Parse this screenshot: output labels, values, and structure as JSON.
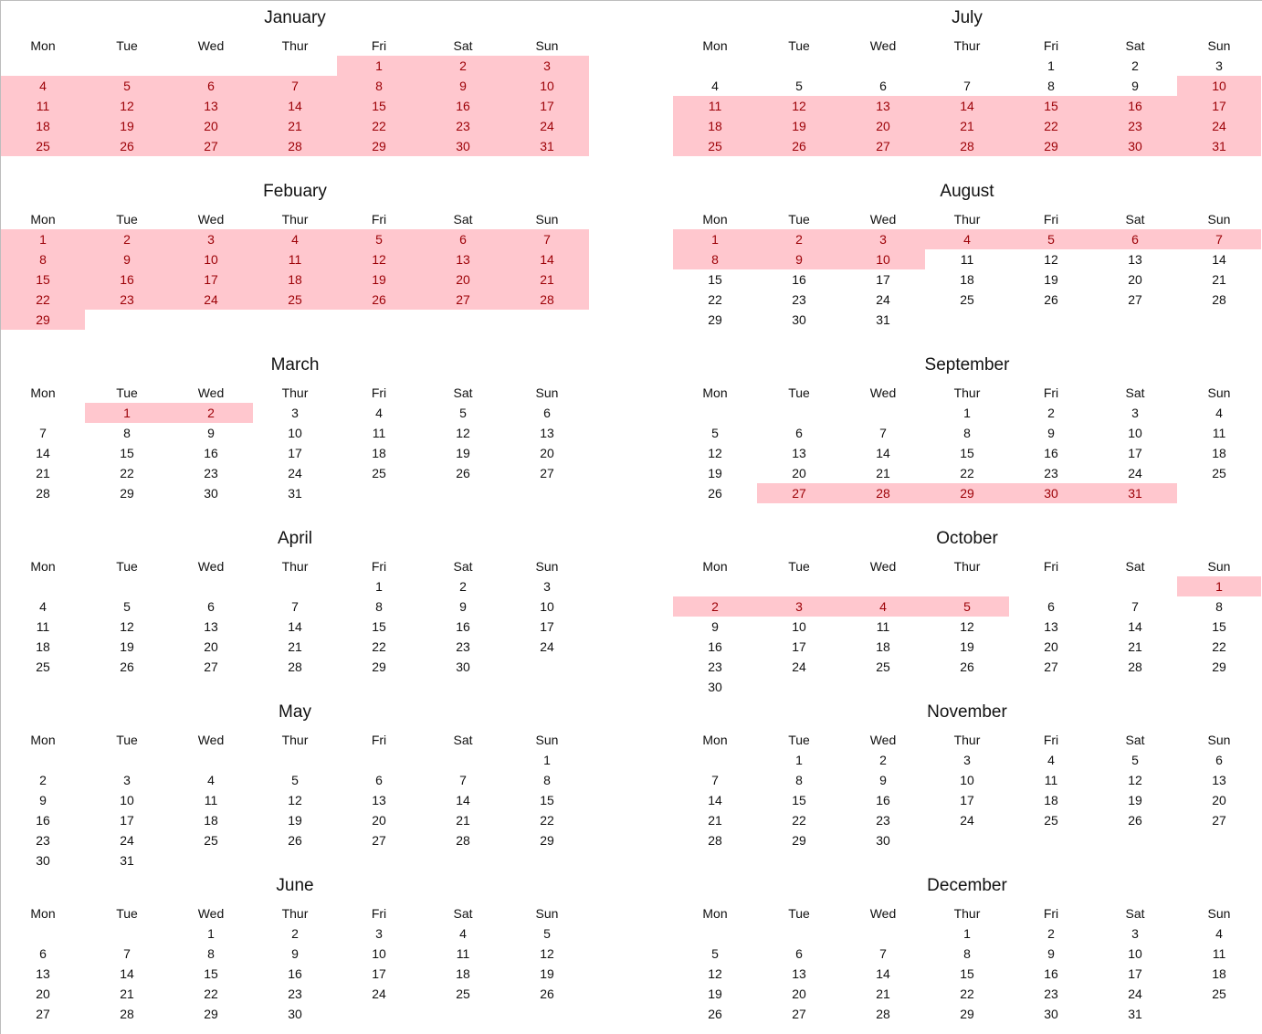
{
  "weekdays": [
    "Mon",
    "Tue",
    "Wed",
    "Thur",
    "Fri",
    "Sat",
    "Sun"
  ],
  "colors": {
    "highlight_fill": "#ffc7ce",
    "highlight_text": "#9c0006"
  },
  "months": [
    {
      "name": "January",
      "days": 31,
      "start_col": 4,
      "highlight": [
        [
          1,
          31
        ]
      ]
    },
    {
      "name": "Febuary",
      "days": 29,
      "start_col": 0,
      "highlight": [
        [
          1,
          29
        ]
      ]
    },
    {
      "name": "March",
      "days": 31,
      "start_col": 1,
      "highlight": [
        [
          1,
          2
        ]
      ]
    },
    {
      "name": "April",
      "days": 30,
      "start_col": 4,
      "highlight": []
    },
    {
      "name": "May",
      "days": 31,
      "start_col": 6,
      "highlight": []
    },
    {
      "name": "June",
      "days": 30,
      "start_col": 2,
      "highlight": []
    },
    {
      "name": "July",
      "days": 31,
      "start_col": 4,
      "highlight": [
        [
          10,
          31
        ]
      ]
    },
    {
      "name": "August",
      "days": 31,
      "start_col": 0,
      "highlight": [
        [
          1,
          10
        ]
      ]
    },
    {
      "name": "September",
      "days": 31,
      "start_col": 3,
      "highlight": [
        [
          27,
          31
        ]
      ]
    },
    {
      "name": "October",
      "days": 30,
      "start_col": 6,
      "highlight": [
        [
          1,
          5
        ]
      ]
    },
    {
      "name": "November",
      "days": 30,
      "start_col": 1,
      "highlight": []
    },
    {
      "name": "December",
      "days": 31,
      "start_col": 3,
      "highlight": []
    }
  ]
}
